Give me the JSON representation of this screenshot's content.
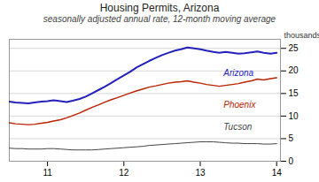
{
  "chart_data": {
    "type": "line",
    "title": "Housing Permits, Arizona",
    "subtitle": "seasonally adjusted annual rate, 12-month moving average",
    "ylabel": "thousands",
    "x": [
      10.5,
      10.58,
      10.67,
      10.75,
      10.83,
      10.92,
      11.0,
      11.08,
      11.17,
      11.25,
      11.33,
      11.42,
      11.5,
      11.58,
      11.67,
      11.75,
      11.83,
      11.92,
      12.0,
      12.08,
      12.17,
      12.25,
      12.33,
      12.42,
      12.5,
      12.58,
      12.67,
      12.75,
      12.83,
      12.92,
      13.0,
      13.08,
      13.17,
      13.25,
      13.33,
      13.42,
      13.5,
      13.58,
      13.67,
      13.75,
      13.83,
      13.92,
      14.0
    ],
    "series": [
      {
        "name": "Arizona",
        "color": "#2222bb",
        "values": [
          13.2,
          13.0,
          12.9,
          12.8,
          13.0,
          13.2,
          13.3,
          13.5,
          13.3,
          13.1,
          13.4,
          13.8,
          14.3,
          15.0,
          15.8,
          16.5,
          17.3,
          18.2,
          19.0,
          19.8,
          20.8,
          21.5,
          22.2,
          22.9,
          23.5,
          24.0,
          24.5,
          24.8,
          25.2,
          25.0,
          24.8,
          24.5,
          24.2,
          24.0,
          24.2,
          24.0,
          23.8,
          23.9,
          24.1,
          24.3,
          24.0,
          23.8,
          24.0
        ]
      },
      {
        "name": "Phoenix",
        "color": "#bb2200",
        "values": [
          8.5,
          8.3,
          8.2,
          8.1,
          8.2,
          8.4,
          8.6,
          8.9,
          9.2,
          9.6,
          10.1,
          10.7,
          11.3,
          11.9,
          12.5,
          13.1,
          13.6,
          14.1,
          14.6,
          15.1,
          15.6,
          16.0,
          16.4,
          16.7,
          17.0,
          17.3,
          17.5,
          17.6,
          17.8,
          17.5,
          17.3,
          17.0,
          16.8,
          16.6,
          16.8,
          17.0,
          17.2,
          17.5,
          17.8,
          18.2,
          18.0,
          18.3,
          18.5
        ]
      },
      {
        "name": "Tucson",
        "color": "#444444",
        "values": [
          2.9,
          2.8,
          2.8,
          2.7,
          2.7,
          2.7,
          2.8,
          2.8,
          2.7,
          2.6,
          2.5,
          2.5,
          2.5,
          2.5,
          2.6,
          2.7,
          2.8,
          2.9,
          3.0,
          3.1,
          3.2,
          3.3,
          3.5,
          3.6,
          3.7,
          3.8,
          3.9,
          4.0,
          4.1,
          4.2,
          4.3,
          4.3,
          4.3,
          4.2,
          4.1,
          4.0,
          4.0,
          3.9,
          3.9,
          3.9,
          3.8,
          3.8,
          3.9
        ]
      }
    ],
    "xlim": [
      10.5,
      14.05
    ],
    "ylim": [
      0,
      27
    ],
    "xticks": [
      11,
      12,
      13,
      14
    ],
    "yticks": [
      0,
      5,
      10,
      15,
      20,
      25
    ],
    "grid": true
  }
}
